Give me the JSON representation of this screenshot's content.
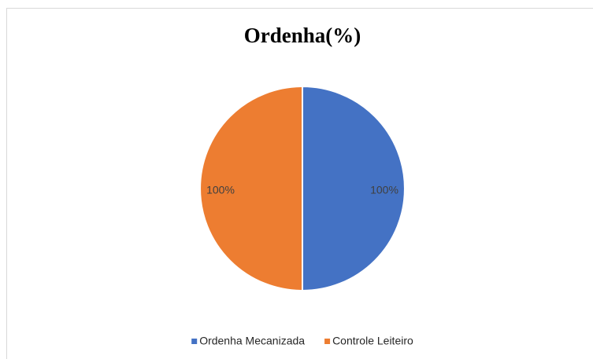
{
  "chart_data": {
    "type": "pie",
    "title": "Ordenha(%)",
    "categories": [
      "Ordenha Mecanizada",
      "Controle Leiteiro"
    ],
    "values": [
      100,
      100
    ],
    "value_labels": [
      "100%",
      "100%"
    ],
    "colors": [
      "#4472c4",
      "#ed7d31"
    ],
    "legend": "bottom"
  }
}
